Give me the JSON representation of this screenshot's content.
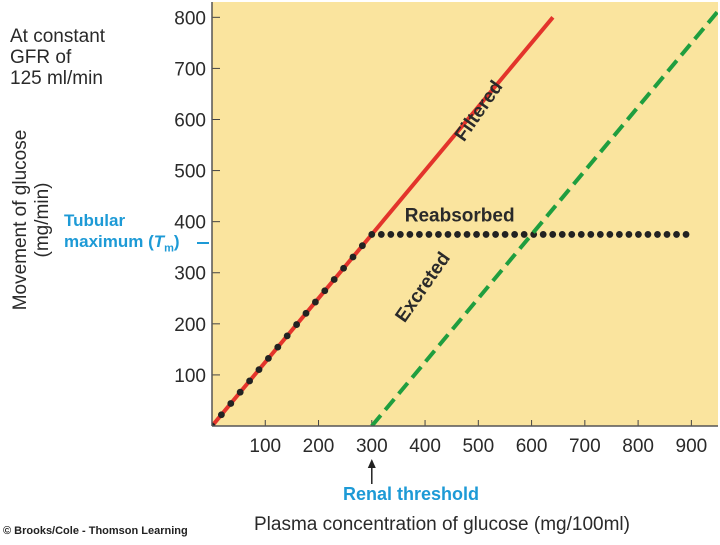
{
  "chart_data": {
    "type": "line",
    "condition_text": "At constant\nGFR of\n125 ml/min",
    "xlabel": "Plasma concentration of glucose (mg/100ml)",
    "ylabel": "Movement of glucose\n(mg/min)",
    "xlim": [
      0,
      950
    ],
    "ylim": [
      0,
      830
    ],
    "x_ticks": [
      100,
      200,
      300,
      400,
      500,
      600,
      700,
      800,
      900
    ],
    "y_ticks": [
      100,
      200,
      300,
      400,
      500,
      600,
      700,
      800
    ],
    "series": [
      {
        "name": "Filtered",
        "style": "solid",
        "color": "#e3342b",
        "x": [
          0,
          640
        ],
        "y": [
          0,
          800
        ]
      },
      {
        "name": "Reabsorbed",
        "style": "dotted",
        "color": "#222222",
        "x": [
          0,
          300,
          890
        ],
        "y": [
          0,
          375,
          375
        ]
      },
      {
        "name": "Excreted",
        "style": "dashed",
        "color": "#1f9e3f",
        "x": [
          300,
          950
        ],
        "y": [
          0,
          812
        ]
      }
    ],
    "annotations": {
      "tubular_maximum_line1": "Tubular",
      "tubular_maximum_line2": "maximum (",
      "tubular_maximum_symbol": "T",
      "tubular_maximum_sub": "m",
      "tubular_maximum_close": ")",
      "tubular_maximum_value": 375,
      "renal_threshold": "Renal threshold",
      "renal_threshold_value": 300
    },
    "grid": false,
    "plot_background": "#fae49e"
  },
  "credit": "© Brooks/Cole - Thomson Learning"
}
